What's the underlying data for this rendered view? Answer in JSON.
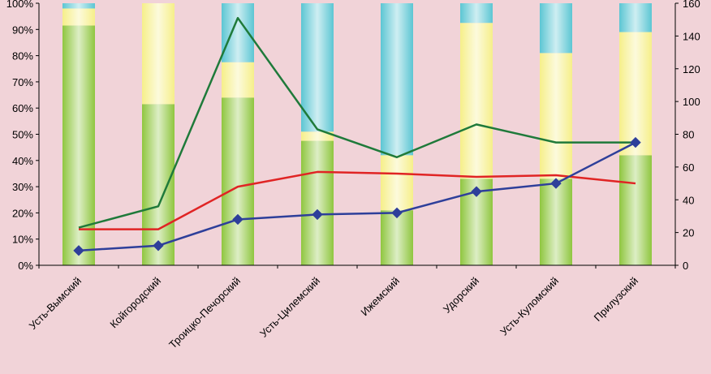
{
  "chart_data": {
    "type": "bar",
    "stacked_percent": true,
    "categories": [
      "Усть-Вымский",
      "Койгородский",
      "Троицко-Печорский",
      "Усть-Цилемский",
      "Ижемский",
      "Удорский",
      "Усть-Куломский",
      "Прилузский"
    ],
    "bar_series": [
      {
        "values": [
          91.5,
          61.5,
          64,
          47.5,
          21,
          33,
          33,
          42
        ],
        "color": "#8fc63f"
      },
      {
        "values": [
          6.5,
          38.5,
          13.5,
          3.5,
          21,
          59.5,
          48,
          47
        ],
        "color": "#f6ef8a"
      },
      {
        "values": [
          2,
          0,
          22.5,
          49,
          58,
          7.5,
          19,
          11
        ],
        "color": "#5cc6d3"
      }
    ],
    "line_series": [
      {
        "axis": "right",
        "values": [
          23,
          36,
          151,
          83,
          66,
          86,
          75,
          75
        ],
        "color": "#1f7a3a",
        "markers": false
      },
      {
        "axis": "right",
        "values": [
          22,
          22,
          48,
          57,
          56,
          54,
          55,
          50
        ],
        "color": "#e02424",
        "markers": false
      },
      {
        "axis": "right",
        "values": [
          9,
          12,
          28,
          31,
          32,
          45,
          50,
          75
        ],
        "color": "#2e3f9a",
        "markers": true
      }
    ],
    "y_left": {
      "min": 0,
      "max": 100,
      "step": 10,
      "tick_labels": [
        "0%",
        "10%",
        "20%",
        "30%",
        "40%",
        "50%",
        "60%",
        "70%",
        "80%",
        "90%",
        "100%"
      ]
    },
    "y_right": {
      "min": 0,
      "max": 160,
      "step": 20,
      "tick_labels": [
        "0",
        "20",
        "40",
        "60",
        "80",
        "100",
        "120",
        "140",
        "160"
      ]
    },
    "grid": false,
    "legend": "none",
    "colors": {
      "background": "#f1d3d8",
      "axis": "#000000",
      "text": "#000000"
    }
  }
}
